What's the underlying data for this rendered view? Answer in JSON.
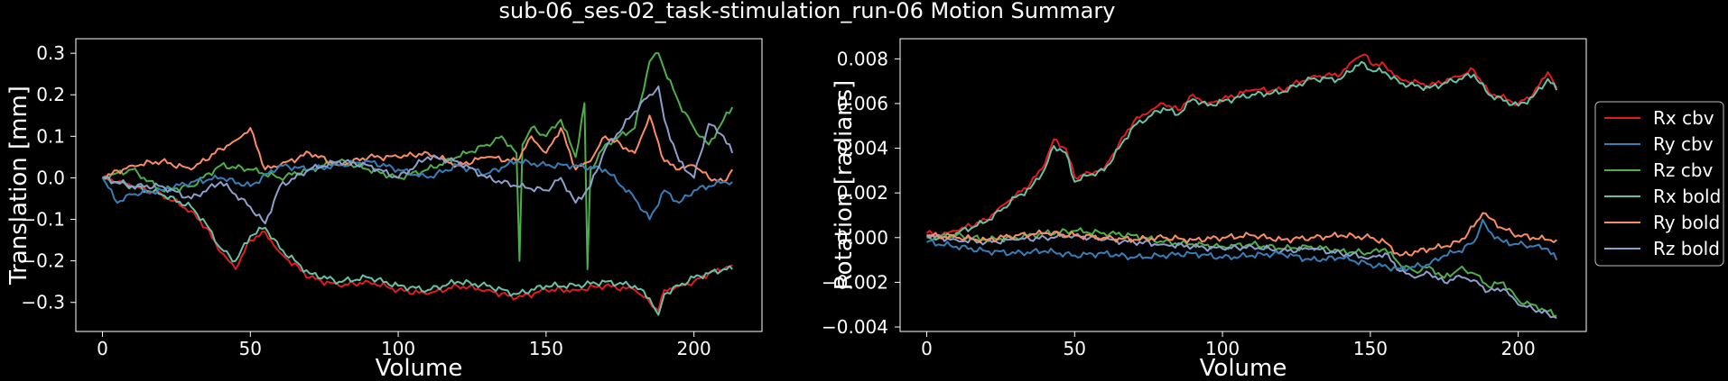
{
  "figure": {
    "title": "sub-06_ses-02_task-stimulation_run-06 Motion Summary",
    "background": "#000000",
    "foreground": "#ffffff"
  },
  "legend": {
    "placement": "right",
    "entries": [
      {
        "label": "Rx cbv",
        "color": "#e41a1c"
      },
      {
        "label": "Ry cbv",
        "color": "#377eb8"
      },
      {
        "label": "Rz cbv",
        "color": "#4daf4a"
      },
      {
        "label": "Rx bold",
        "color": "#66c2a5"
      },
      {
        "label": "Ry bold",
        "color": "#fc8d62"
      },
      {
        "label": "Rz bold",
        "color": "#8da0cb"
      }
    ]
  },
  "chart_data": [
    {
      "type": "line",
      "xlabel": "Volume",
      "ylabel": "Translation [mm]",
      "xlim": [
        -9,
        223
      ],
      "ylim": [
        -0.37,
        0.335
      ],
      "xticks": [
        0,
        50,
        100,
        150,
        200
      ],
      "yticks": [
        -0.3,
        -0.2,
        -0.1,
        0.0,
        0.1,
        0.2,
        0.3
      ],
      "ytick_labels": [
        "−0.3",
        "−0.2",
        "−0.1",
        "0.0",
        "0.1",
        "0.2",
        "0.3"
      ],
      "grid": false,
      "n_volumes": 214,
      "series": [
        {
          "color": "#e41a1c",
          "x": [
            0,
            5,
            10,
            20,
            30,
            35,
            40,
            45,
            50,
            55,
            60,
            70,
            80,
            90,
            100,
            110,
            120,
            130,
            140,
            150,
            160,
            170,
            180,
            185,
            188,
            190,
            195,
            200,
            205,
            210,
            213
          ],
          "y": [
            0.0,
            -0.01,
            -0.02,
            -0.04,
            -0.08,
            -0.12,
            -0.18,
            -0.22,
            -0.15,
            -0.13,
            -0.18,
            -0.24,
            -0.26,
            -0.25,
            -0.27,
            -0.28,
            -0.26,
            -0.27,
            -0.29,
            -0.27,
            -0.27,
            -0.26,
            -0.27,
            -0.3,
            -0.32,
            -0.27,
            -0.26,
            -0.25,
            -0.23,
            -0.22,
            -0.21
          ]
        },
        {
          "color": "#66c2a5",
          "x": [
            0,
            5,
            10,
            20,
            30,
            35,
            40,
            45,
            50,
            55,
            60,
            70,
            80,
            90,
            100,
            110,
            120,
            130,
            140,
            150,
            160,
            170,
            180,
            185,
            188,
            190,
            195,
            200,
            205,
            210,
            213
          ],
          "y": [
            0.0,
            -0.01,
            -0.02,
            -0.04,
            -0.07,
            -0.11,
            -0.17,
            -0.2,
            -0.14,
            -0.12,
            -0.17,
            -0.23,
            -0.25,
            -0.24,
            -0.26,
            -0.27,
            -0.25,
            -0.26,
            -0.28,
            -0.26,
            -0.26,
            -0.25,
            -0.26,
            -0.29,
            -0.33,
            -0.28,
            -0.26,
            -0.24,
            -0.23,
            -0.22,
            -0.22
          ]
        },
        {
          "color": "#4daf4a",
          "x": [
            0,
            10,
            20,
            30,
            40,
            50,
            60,
            70,
            80,
            90,
            100,
            110,
            120,
            130,
            135,
            140,
            141,
            142,
            145,
            150,
            155,
            160,
            163,
            164,
            165,
            170,
            180,
            185,
            188,
            190,
            195,
            200,
            205,
            210,
            213
          ],
          "y": [
            0.0,
            0.02,
            -0.03,
            -0.02,
            0.03,
            0.02,
            0.0,
            0.02,
            0.04,
            0.02,
            0.0,
            0.02,
            0.05,
            0.08,
            0.1,
            0.06,
            -0.2,
            0.08,
            0.12,
            0.1,
            0.14,
            0.05,
            0.18,
            -0.22,
            0.02,
            0.08,
            0.12,
            0.28,
            0.3,
            0.26,
            0.18,
            0.12,
            0.08,
            0.14,
            0.17
          ]
        },
        {
          "color": "#fc8d62",
          "x": [
            0,
            10,
            20,
            30,
            40,
            45,
            50,
            55,
            60,
            70,
            80,
            90,
            100,
            110,
            120,
            130,
            140,
            145,
            150,
            155,
            160,
            165,
            170,
            180,
            185,
            190,
            195,
            200,
            205,
            210,
            213
          ],
          "y": [
            0.0,
            0.03,
            0.04,
            0.02,
            0.07,
            0.09,
            0.12,
            0.02,
            0.03,
            0.06,
            0.03,
            0.05,
            0.05,
            0.06,
            0.03,
            0.05,
            0.04,
            0.1,
            0.06,
            0.12,
            0.02,
            0.04,
            0.1,
            0.06,
            0.15,
            0.04,
            0.02,
            0.03,
            0.0,
            -0.01,
            0.02
          ]
        },
        {
          "color": "#377eb8",
          "x": [
            0,
            5,
            10,
            20,
            30,
            40,
            50,
            60,
            70,
            80,
            90,
            100,
            110,
            120,
            130,
            140,
            150,
            160,
            170,
            180,
            185,
            190,
            195,
            200,
            205,
            210,
            213
          ],
          "y": [
            0.0,
            -0.06,
            -0.04,
            -0.03,
            -0.01,
            0.0,
            -0.02,
            0.03,
            0.02,
            0.03,
            0.04,
            0.02,
            0.0,
            0.03,
            0.01,
            0.04,
            0.03,
            0.03,
            0.02,
            -0.05,
            -0.1,
            -0.03,
            -0.06,
            -0.03,
            -0.02,
            -0.01,
            -0.01
          ]
        },
        {
          "color": "#8da0cb",
          "x": [
            0,
            10,
            20,
            30,
            40,
            50,
            55,
            60,
            70,
            80,
            90,
            100,
            110,
            120,
            130,
            140,
            150,
            155,
            160,
            165,
            170,
            180,
            185,
            188,
            190,
            195,
            200,
            205,
            210,
            213
          ],
          "y": [
            0.0,
            -0.02,
            -0.02,
            -0.05,
            -0.01,
            -0.07,
            -0.11,
            -0.02,
            0.02,
            0.04,
            0.03,
            0.0,
            0.05,
            0.04,
            0.0,
            -0.02,
            -0.03,
            0.0,
            -0.06,
            -0.02,
            0.07,
            0.16,
            0.2,
            0.22,
            0.14,
            0.04,
            0.0,
            0.13,
            0.1,
            0.06
          ]
        }
      ]
    },
    {
      "type": "line",
      "xlabel": "Volume",
      "ylabel": "Rotation [radians]",
      "xlim": [
        -9,
        223
      ],
      "ylim": [
        -0.0042,
        0.0089
      ],
      "xticks": [
        0,
        50,
        100,
        150,
        200
      ],
      "yticks": [
        -0.004,
        -0.002,
        0.0,
        0.002,
        0.004,
        0.006,
        0.008
      ],
      "ytick_labels": [
        "−0.004",
        "−0.002",
        "0.000",
        "0.002",
        "0.004",
        "0.006",
        "0.008"
      ],
      "grid": false,
      "n_volumes": 214,
      "series": [
        {
          "color": "#e41a1c",
          "x": [
            0,
            5,
            10,
            20,
            25,
            30,
            35,
            40,
            43,
            47,
            50,
            55,
            60,
            65,
            70,
            75,
            80,
            85,
            90,
            95,
            100,
            110,
            120,
            130,
            140,
            145,
            148,
            150,
            155,
            160,
            170,
            180,
            185,
            190,
            200,
            205,
            210,
            213
          ],
          "y": [
            0.0002,
            0.0001,
            0.0003,
            0.0008,
            0.0014,
            0.0019,
            0.0024,
            0.0033,
            0.0044,
            0.004,
            0.0027,
            0.0029,
            0.0031,
            0.0042,
            0.0052,
            0.0056,
            0.006,
            0.0057,
            0.0064,
            0.006,
            0.0062,
            0.0066,
            0.0066,
            0.0072,
            0.0073,
            0.008,
            0.0082,
            0.0078,
            0.0077,
            0.0071,
            0.0068,
            0.0072,
            0.0075,
            0.0065,
            0.006,
            0.0064,
            0.0074,
            0.0067
          ]
        },
        {
          "color": "#66c2a5",
          "x": [
            0,
            5,
            10,
            20,
            25,
            30,
            35,
            40,
            43,
            47,
            50,
            55,
            60,
            65,
            70,
            75,
            80,
            85,
            90,
            95,
            100,
            110,
            120,
            130,
            140,
            145,
            148,
            150,
            155,
            160,
            170,
            180,
            185,
            190,
            200,
            205,
            210,
            213
          ],
          "y": [
            0.0001,
            0.0,
            0.0002,
            0.0007,
            0.0012,
            0.0018,
            0.0022,
            0.0031,
            0.0041,
            0.0038,
            0.0025,
            0.0028,
            0.003,
            0.004,
            0.005,
            0.0054,
            0.0058,
            0.0055,
            0.0062,
            0.0059,
            0.0061,
            0.0064,
            0.0065,
            0.0071,
            0.0071,
            0.0077,
            0.0078,
            0.0075,
            0.0074,
            0.0069,
            0.0067,
            0.0071,
            0.0073,
            0.0064,
            0.0059,
            0.0063,
            0.0071,
            0.0066
          ]
        },
        {
          "color": "#4daf4a",
          "x": [
            0,
            10,
            20,
            30,
            40,
            50,
            60,
            70,
            80,
            90,
            100,
            110,
            120,
            130,
            140,
            150,
            155,
            160,
            165,
            170,
            175,
            180,
            185,
            190,
            195,
            200,
            205,
            210,
            213
          ],
          "y": [
            0.0,
            0.0001,
            -0.0001,
            0.0,
            0.0002,
            0.0003,
            0.0002,
            0.0001,
            -0.0002,
            -0.0003,
            -0.0004,
            -0.0003,
            -0.0005,
            -0.0004,
            -0.0006,
            -0.0007,
            -0.0005,
            -0.0012,
            -0.0015,
            -0.0013,
            -0.0018,
            -0.0014,
            -0.0016,
            -0.0022,
            -0.002,
            -0.0028,
            -0.003,
            -0.0033,
            -0.0035
          ]
        },
        {
          "color": "#8da0cb",
          "x": [
            0,
            10,
            20,
            30,
            40,
            50,
            60,
            70,
            80,
            90,
            100,
            110,
            120,
            130,
            140,
            150,
            155,
            160,
            165,
            170,
            175,
            180,
            185,
            190,
            195,
            200,
            205,
            210,
            213
          ],
          "y": [
            0.0001,
            -0.0001,
            -0.0002,
            -0.0001,
            0.0,
            0.0001,
            -0.0001,
            -0.0002,
            -0.0003,
            -0.0004,
            -0.0005,
            -0.0004,
            -0.0006,
            -0.0005,
            -0.0007,
            -0.0009,
            -0.0007,
            -0.0015,
            -0.0018,
            -0.0016,
            -0.002,
            -0.0017,
            -0.0019,
            -0.0024,
            -0.0023,
            -0.003,
            -0.0032,
            -0.0034,
            -0.0036
          ]
        },
        {
          "color": "#fc8d62",
          "x": [
            0,
            10,
            20,
            30,
            40,
            50,
            60,
            70,
            80,
            90,
            100,
            110,
            120,
            130,
            140,
            150,
            155,
            160,
            170,
            175,
            180,
            185,
            188,
            190,
            195,
            200,
            205,
            210,
            213
          ],
          "y": [
            0.0001,
            0.0,
            -0.0001,
            0.0001,
            0.0002,
            0.0001,
            0.0,
            -0.0001,
            0.0,
            -0.0001,
            0.0,
            0.0001,
            -0.0001,
            0.0,
            0.0001,
            0.0,
            -0.0002,
            -0.0008,
            -0.0005,
            -0.0004,
            -0.0002,
            0.0005,
            0.0011,
            0.0009,
            0.0004,
            0.0001,
            0.0,
            -0.0001,
            -0.0001
          ]
        },
        {
          "color": "#377eb8",
          "x": [
            0,
            10,
            20,
            30,
            40,
            50,
            60,
            70,
            80,
            90,
            100,
            110,
            120,
            130,
            140,
            150,
            160,
            170,
            175,
            180,
            185,
            188,
            190,
            195,
            200,
            205,
            210,
            213
          ],
          "y": [
            -0.0002,
            -0.0004,
            -0.0006,
            -0.0007,
            -0.0006,
            -0.0008,
            -0.0007,
            -0.0009,
            -0.0008,
            -0.0007,
            -0.0009,
            -0.0008,
            -0.0007,
            -0.001,
            -0.0009,
            -0.0012,
            -0.0014,
            -0.0012,
            -0.0008,
            -0.0006,
            -0.0002,
            0.0008,
            0.0003,
            -0.0002,
            -0.0003,
            -0.0004,
            -0.0005,
            -0.001
          ]
        }
      ]
    }
  ]
}
